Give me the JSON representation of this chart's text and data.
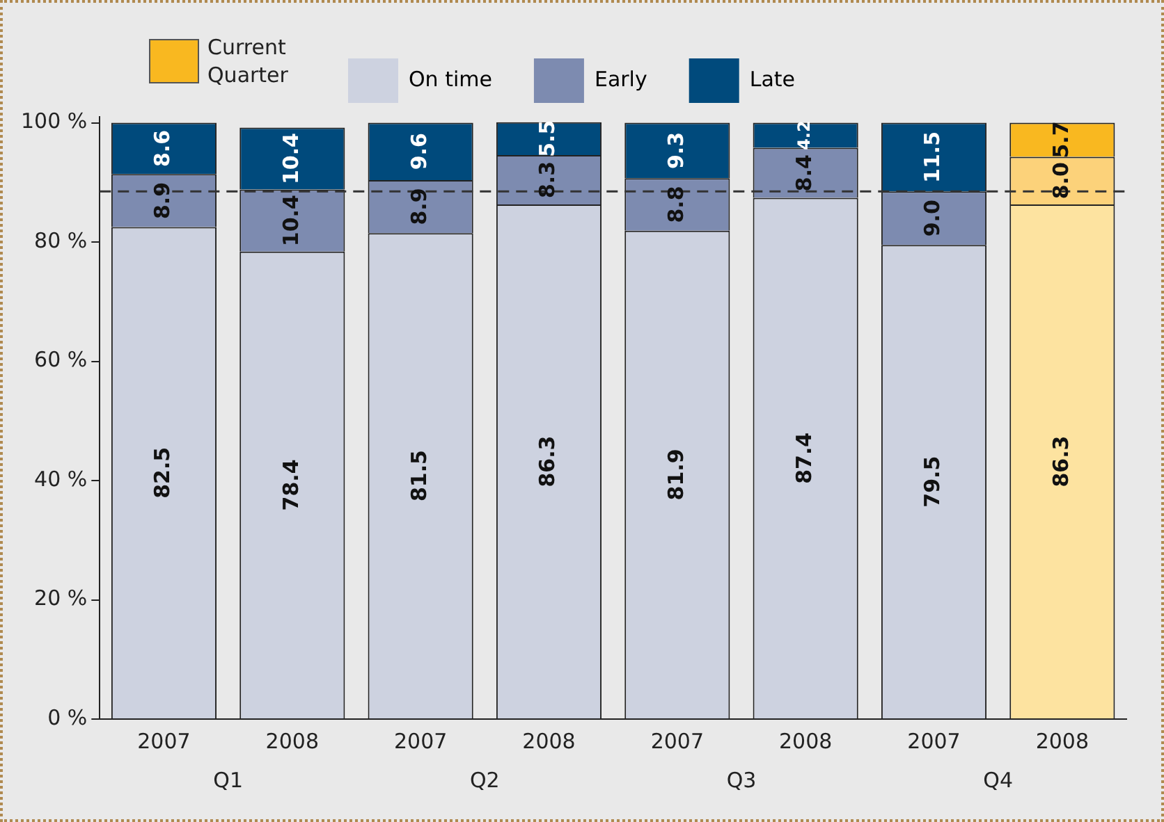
{
  "chart_data": {
    "type": "bar",
    "stacked": true,
    "categories": [
      "2007",
      "2008",
      "2007",
      "2008",
      "2007",
      "2008",
      "2007",
      "2008"
    ],
    "series": [
      {
        "name": "On time",
        "color": "#cdd2e0",
        "colors": [
          "#cdd2e0",
          "#cdd2e0",
          "#cdd2e0",
          "#cdd2e0",
          "#cdd2e0",
          "#cdd2e0",
          "#cdd2e0",
          "#fde3a0"
        ],
        "values": [
          82.5,
          78.4,
          81.5,
          86.3,
          81.9,
          87.4,
          79.5,
          86.3
        ],
        "value_labels": [
          "82.5",
          "78.4",
          "81.5",
          "86.3",
          "81.9",
          "87.4",
          "79.5",
          "86.3"
        ]
      },
      {
        "name": "Early",
        "color": "#7d8bb0",
        "colors": [
          "#7d8bb0",
          "#7d8bb0",
          "#7d8bb0",
          "#7d8bb0",
          "#7d8bb0",
          "#7d8bb0",
          "#7d8bb0",
          "#fcd27a"
        ],
        "values": [
          8.9,
          10.4,
          8.9,
          8.3,
          8.8,
          8.4,
          9.0,
          8.0
        ],
        "value_labels": [
          "8.9",
          "10.4",
          "8.9",
          "8.3",
          "8.8",
          "8.4",
          "9.0",
          "8.0"
        ]
      },
      {
        "name": "Late",
        "color": "#004a7c",
        "colors": [
          "#004a7c",
          "#004a7c",
          "#004a7c",
          "#004a7c",
          "#004a7c",
          "#004a7c",
          "#004a7c",
          "#f9b820"
        ],
        "values": [
          8.6,
          10.4,
          9.6,
          5.5,
          9.3,
          4.2,
          11.5,
          5.7
        ],
        "value_labels": [
          "8.6",
          "10.4",
          "9.6",
          "5.5",
          "9.3",
          "4.2",
          "11.5",
          "5.7"
        ]
      }
    ],
    "ylim": [
      0,
      101
    ],
    "yticks": [
      {
        "value": 0,
        "label": "0 %"
      },
      {
        "value": 20,
        "label": "20 %"
      },
      {
        "value": 40,
        "label": "40 %"
      },
      {
        "value": 60,
        "label": "60 %"
      },
      {
        "value": 80,
        "label": "80 %"
      },
      {
        "value": 100,
        "label": "100 %"
      }
    ],
    "ref_lines": [
      {
        "axis": "y",
        "value": 88.5,
        "color": "#333333",
        "line_style": "dashed"
      }
    ],
    "annotations": [
      "Q1",
      "Q2",
      "Q3",
      "Q4"
    ],
    "legend_title": "Current Quarter",
    "legend": "top",
    "grid": false
  }
}
